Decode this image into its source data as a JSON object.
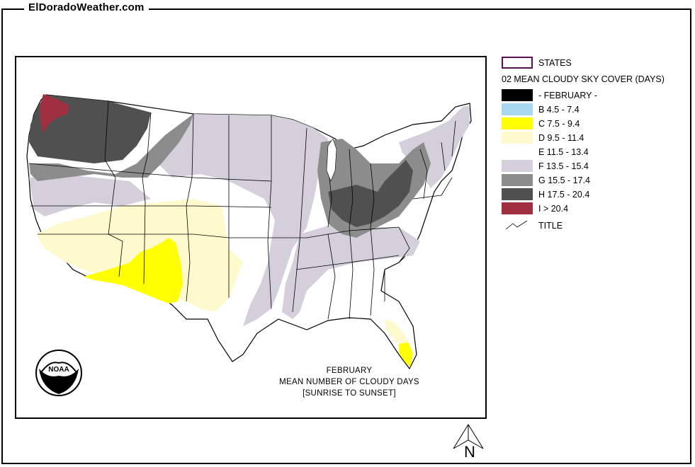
{
  "site": {
    "title": "ElDoradoWeather.com"
  },
  "map": {
    "caption_line1": "FEBRUARY",
    "caption_line2": "MEAN NUMBER OF CLOUDY DAYS",
    "caption_line3": "[SUNRISE TO SUNSET]",
    "colors": {
      "B": "#a8d8f0",
      "C": "#ffff00",
      "D": "#fffacd",
      "E": "#ffffff",
      "F": "#d3d0dc",
      "G": "#8c8c8c",
      "H": "#505050",
      "I": "#a0303f",
      "feb": "#000000",
      "state_outline": "#000000"
    }
  },
  "legend": {
    "states_label": "STATES",
    "states_swatch_color": "#5a1050",
    "heading": "02 MEAN CLOUDY SKY COVER (DAYS)",
    "items": [
      {
        "label": "- FEBRUARY -",
        "color": "#000000"
      },
      {
        "label": "B 4.5 - 7.4",
        "color": "#a8d8f0"
      },
      {
        "label": "C 7.5 - 9.4",
        "color": "#ffff00"
      },
      {
        "label": "D 9.5 - 11.4",
        "color": "#fffacd"
      },
      {
        "label": "E 11.5 - 13.4",
        "color": "#ffffff"
      },
      {
        "label": "F 13.5 - 15.4",
        "color": "#d3d0dc"
      },
      {
        "label": "G 15.5 - 17.4",
        "color": "#8c8c8c"
      },
      {
        "label": "H 17.5 - 20.4",
        "color": "#505050"
      },
      {
        "label": "I > 20.4",
        "color": "#a0303f"
      }
    ],
    "title_label": "TITLE"
  },
  "north_arrow": {
    "letter": "N",
    "icon": "north-arrow-icon"
  },
  "logo": {
    "icon": "noaa-logo-icon",
    "text": "NOAA"
  }
}
